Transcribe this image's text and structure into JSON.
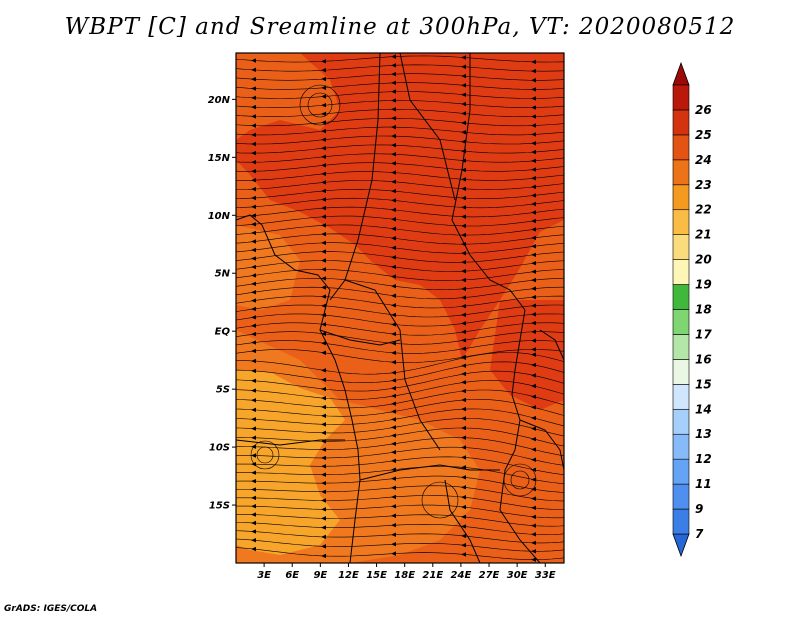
{
  "title": "WBPT [C] and Sreamline at 300hPa, VT: 2020080512",
  "credit": "GrADS: IGES/COLA",
  "map": {
    "lon_range": [
      0,
      35
    ],
    "lat_range": [
      -20,
      24
    ],
    "lon_ticks": [
      {
        "value": 3,
        "label": "3E"
      },
      {
        "value": 6,
        "label": "6E"
      },
      {
        "value": 9,
        "label": "9E"
      },
      {
        "value": 12,
        "label": "12E"
      },
      {
        "value": 15,
        "label": "15E"
      },
      {
        "value": 18,
        "label": "18E"
      },
      {
        "value": 21,
        "label": "21E"
      },
      {
        "value": 24,
        "label": "24E"
      },
      {
        "value": 27,
        "label": "27E"
      },
      {
        "value": 30,
        "label": "30E"
      },
      {
        "value": 33,
        "label": "33E"
      }
    ],
    "lat_ticks": [
      {
        "value": 20,
        "label": "20N"
      },
      {
        "value": 15,
        "label": "15N"
      },
      {
        "value": 10,
        "label": "10N"
      },
      {
        "value": 5,
        "label": "5N"
      },
      {
        "value": 0,
        "label": "EQ"
      },
      {
        "value": -5,
        "label": "5S"
      },
      {
        "value": -10,
        "label": "10S"
      },
      {
        "value": -15,
        "label": "15S"
      }
    ],
    "field_colors": {
      "c21": "#f7a52b",
      "c22": "#f0781f",
      "c23": "#eb6019",
      "c24": "#e03c14"
    }
  },
  "colorbar": {
    "levels": [
      {
        "label": "",
        "color": "#2566d8"
      },
      {
        "label": "7",
        "color": "#3a7ee6"
      },
      {
        "label": "9",
        "color": "#4f8ff0"
      },
      {
        "label": "11",
        "color": "#65a3f5"
      },
      {
        "label": "12",
        "color": "#86baf8"
      },
      {
        "label": "13",
        "color": "#a7cffb"
      },
      {
        "label": "14",
        "color": "#cfe6fd"
      },
      {
        "label": "15",
        "color": "#eaf7e5"
      },
      {
        "label": "16",
        "color": "#b4e6a7"
      },
      {
        "label": "17",
        "color": "#7fd571"
      },
      {
        "label": "18",
        "color": "#3fb83c"
      },
      {
        "label": "19",
        "color": "#fdf6b6"
      },
      {
        "label": "20",
        "color": "#fbdc7c"
      },
      {
        "label": "21",
        "color": "#f9bd46"
      },
      {
        "label": "22",
        "color": "#f49a1e"
      },
      {
        "label": "23",
        "color": "#ec7318"
      },
      {
        "label": "24",
        "color": "#e35414"
      },
      {
        "label": "25",
        "color": "#d3340f"
      },
      {
        "label": "26",
        "color": "#b9180a"
      },
      {
        "label": "",
        "color": "#9c0a08"
      }
    ]
  }
}
